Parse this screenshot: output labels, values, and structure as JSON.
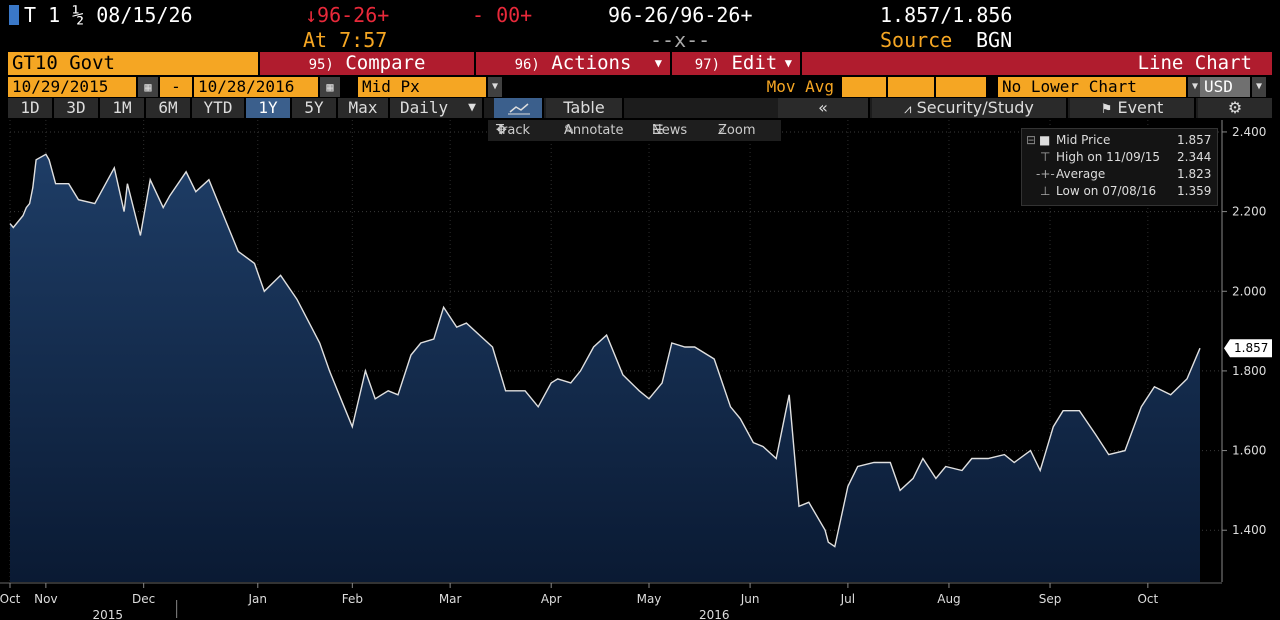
{
  "header": {
    "ticker": "T 1 ½ 08/15/26",
    "change": "↓96-26+",
    "change2": "- 00+",
    "bid_ask": "96-26/96-26+",
    "yield_pair": "1.857/1.856",
    "time_label": "At 7:57",
    "size": "--x--",
    "source_label": "Source",
    "source_value": "BGN"
  },
  "menu": {
    "security": "GT10 Govt",
    "compare_num": "95)",
    "compare": "Compare",
    "actions_num": "96)",
    "actions": "Actions",
    "edit_num": "97)",
    "edit": "Edit",
    "chart_type": "Line Chart"
  },
  "controls": {
    "start_date": "10/29/2015",
    "dash": "-",
    "end_date": "10/28/2016",
    "field": "Mid Px",
    "mov_avg": "Mov Avg",
    "lower_chart": "No Lower Chart",
    "currency": "USD"
  },
  "periods": {
    "items": [
      "1D",
      "3D",
      "1M",
      "6M",
      "YTD",
      "1Y",
      "5Y",
      "Max"
    ],
    "active": "1Y",
    "freq": "Daily",
    "table": "Table",
    "security_study": "Security/Study",
    "event": "Event"
  },
  "tools": {
    "track": "Track",
    "annotate": "Annotate",
    "news": "News",
    "zoom": "Zoom"
  },
  "legend": {
    "mid_label": "Mid Price",
    "mid_value": "1.857",
    "high_label": "High on 11/09/15",
    "high_value": "2.344",
    "avg_label": "Average",
    "avg_value": "1.823",
    "low_label": "Low on 07/08/16",
    "low_value": "1.359"
  },
  "colors": {
    "orange": "#f5a623",
    "red_menu": "#b01c2e",
    "change_red": "#e8293a",
    "area_top": "#1e3d66",
    "area_bottom": "#0a1a33",
    "line": "#e0e0e0"
  },
  "chart_data": {
    "type": "area",
    "last_value_label": "1.857",
    "ylim": [
      1.27,
      2.43
    ],
    "yticks": [
      1.4,
      1.6,
      1.8,
      2.0,
      2.2,
      2.4
    ],
    "ytick_labels": [
      "1.400",
      "1.600",
      "1.800",
      "2.000",
      "2.200",
      "2.400"
    ],
    "x_start": "2015-10-29",
    "x_end": "2016-10-28",
    "month_labels": [
      {
        "date": "2015-10-29",
        "label": "Oct"
      },
      {
        "date": "2015-11-09",
        "label": "Nov"
      },
      {
        "date": "2015-12-09",
        "label": "Dec"
      },
      {
        "date": "2016-01-13",
        "label": "Jan"
      },
      {
        "date": "2016-02-11",
        "label": "Feb"
      },
      {
        "date": "2016-03-12",
        "label": "Mar"
      },
      {
        "date": "2016-04-12",
        "label": "Apr"
      },
      {
        "date": "2016-05-12",
        "label": "May"
      },
      {
        "date": "2016-06-12",
        "label": "Jun"
      },
      {
        "date": "2016-07-12",
        "label": "Jul"
      },
      {
        "date": "2016-08-12",
        "label": "Aug"
      },
      {
        "date": "2016-09-12",
        "label": "Sep"
      },
      {
        "date": "2016-10-12",
        "label": "Oct"
      }
    ],
    "year_labels": [
      {
        "date": "2015-11-28",
        "label": "2015"
      },
      {
        "date": "2016-06-01",
        "label": "2016"
      }
    ],
    "year_divider": "2016-01-01",
    "series": [
      {
        "name": "Mid Price",
        "x": [
          "2015-10-29",
          "2015-10-30",
          "2015-11-02",
          "2015-11-03",
          "2015-11-04",
          "2015-11-05",
          "2015-11-06",
          "2015-11-09",
          "2015-11-10",
          "2015-11-12",
          "2015-11-16",
          "2015-11-19",
          "2015-11-24",
          "2015-11-30",
          "2015-12-03",
          "2015-12-04",
          "2015-12-08",
          "2015-12-11",
          "2015-12-15",
          "2015-12-17",
          "2015-12-22",
          "2015-12-25",
          "2015-12-29",
          "2016-01-04",
          "2016-01-07",
          "2016-01-12",
          "2016-01-15",
          "2016-01-20",
          "2016-01-25",
          "2016-02-01",
          "2016-02-04",
          "2016-02-08",
          "2016-02-11",
          "2016-02-15",
          "2016-02-18",
          "2016-02-22",
          "2016-02-25",
          "2016-02-29",
          "2016-03-03",
          "2016-03-07",
          "2016-03-10",
          "2016-03-14",
          "2016-03-17",
          "2016-03-21",
          "2016-03-25",
          "2016-03-29",
          "2016-04-04",
          "2016-04-08",
          "2016-04-12",
          "2016-04-14",
          "2016-04-18",
          "2016-04-21",
          "2016-04-25",
          "2016-04-29",
          "2016-05-04",
          "2016-05-09",
          "2016-05-12",
          "2016-05-16",
          "2016-05-19",
          "2016-05-23",
          "2016-05-26",
          "2016-06-01",
          "2016-06-06",
          "2016-06-09",
          "2016-06-13",
          "2016-06-16",
          "2016-06-20",
          "2016-06-23",
          "2016-06-24",
          "2016-06-27",
          "2016-06-30",
          "2016-07-05",
          "2016-07-06",
          "2016-07-08",
          "2016-07-12",
          "2016-07-15",
          "2016-07-20",
          "2016-07-25",
          "2016-07-28",
          "2016-08-01",
          "2016-08-04",
          "2016-08-08",
          "2016-08-11",
          "2016-08-16",
          "2016-08-19",
          "2016-08-24",
          "2016-08-29",
          "2016-09-01",
          "2016-09-06",
          "2016-09-09",
          "2016-09-13",
          "2016-09-16",
          "2016-09-21",
          "2016-09-26",
          "2016-09-30",
          "2016-10-05",
          "2016-10-10",
          "2016-10-14",
          "2016-10-19",
          "2016-10-24",
          "2016-10-28"
        ],
        "y": [
          2.17,
          2.16,
          2.19,
          2.21,
          2.22,
          2.26,
          2.33,
          2.344,
          2.33,
          2.27,
          2.27,
          2.23,
          2.22,
          2.31,
          2.2,
          2.27,
          2.14,
          2.28,
          2.21,
          2.24,
          2.3,
          2.25,
          2.28,
          2.16,
          2.1,
          2.07,
          2.0,
          2.04,
          1.98,
          1.87,
          1.8,
          1.72,
          1.66,
          1.8,
          1.73,
          1.75,
          1.74,
          1.84,
          1.87,
          1.88,
          1.96,
          1.91,
          1.92,
          1.89,
          1.86,
          1.75,
          1.75,
          1.71,
          1.77,
          1.78,
          1.77,
          1.8,
          1.86,
          1.89,
          1.79,
          1.75,
          1.73,
          1.77,
          1.87,
          1.86,
          1.86,
          1.83,
          1.71,
          1.68,
          1.62,
          1.61,
          1.58,
          1.7,
          1.74,
          1.46,
          1.47,
          1.4,
          1.37,
          1.359,
          1.51,
          1.56,
          1.57,
          1.57,
          1.5,
          1.53,
          1.58,
          1.53,
          1.56,
          1.55,
          1.58,
          1.58,
          1.59,
          1.57,
          1.6,
          1.55,
          1.66,
          1.7,
          1.7,
          1.64,
          1.59,
          1.6,
          1.71,
          1.76,
          1.74,
          1.78,
          1.857
        ]
      }
    ]
  }
}
